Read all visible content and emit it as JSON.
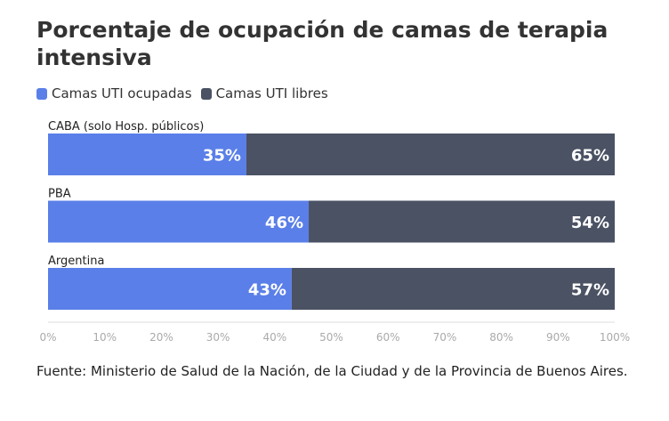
{
  "title": "Porcentaje de ocupación de camas de terapia intensiva",
  "source": "Fuente: Ministerio de Salud de la Nación, de la Ciudad y de la Provincia de Buenos Aires.",
  "colors": {
    "occupied": "#5a7fe8",
    "free": "#4a5263",
    "grid": "#dddddd",
    "tick": "#aaaaaa"
  },
  "chart_data": {
    "type": "bar",
    "orientation": "horizontal",
    "stacked": true,
    "categories": [
      "CABA (solo Hosp. públicos)",
      "PBA",
      "Argentina"
    ],
    "series": [
      {
        "name": "Camas UTI ocupadas",
        "values": [
          35,
          46,
          43
        ],
        "labels": [
          "35%",
          "46%",
          "43%"
        ]
      },
      {
        "name": "Camas UTI libres",
        "values": [
          65,
          54,
          57
        ],
        "labels": [
          "65%",
          "54%",
          "57%"
        ]
      }
    ],
    "xlim": [
      0,
      100
    ],
    "x_ticks": [
      "0%",
      "10%",
      "20%",
      "30%",
      "40%",
      "50%",
      "60%",
      "70%",
      "80%",
      "90%",
      "100%"
    ],
    "legend_position": "top-left",
    "grid": false
  }
}
